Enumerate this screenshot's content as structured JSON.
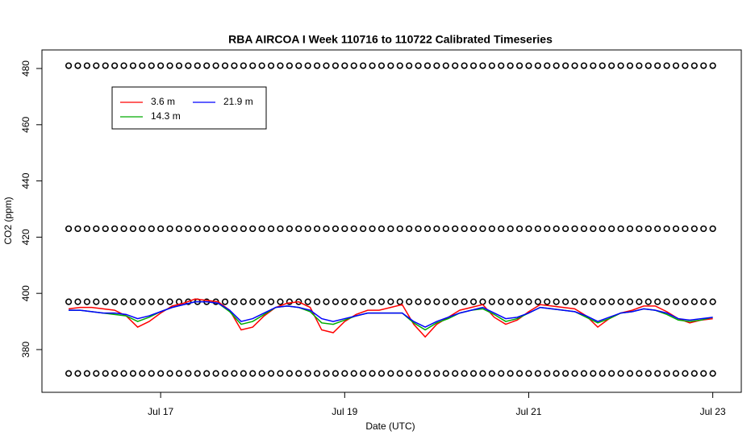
{
  "chart_data": {
    "type": "line",
    "title": "RBA AIRCOA I  Week 110716 to 110722  Calibrated Timeseries",
    "x_label": "Date (UTC)",
    "y_label": "CO2 (ppm)",
    "xlim": [
      15.71,
      23.31
    ],
    "ylim": [
      364.8,
      486.6
    ],
    "xticks": [
      {
        "value": 17,
        "label": "Jul 17"
      },
      {
        "value": 19,
        "label": "Jul 19"
      },
      {
        "value": 21,
        "label": "Jul 21"
      },
      {
        "value": 23,
        "label": "Jul 23"
      }
    ],
    "yticks": [
      380,
      400,
      420,
      440,
      460,
      480
    ],
    "legend": "top-left",
    "x": [
      16.0,
      16.125,
      16.25,
      16.375,
      16.5,
      16.625,
      16.75,
      16.875,
      17.0,
      17.125,
      17.25,
      17.375,
      17.5,
      17.625,
      17.75,
      17.875,
      18.0,
      18.125,
      18.25,
      18.375,
      18.5,
      18.625,
      18.75,
      18.875,
      19.0,
      19.125,
      19.25,
      19.375,
      19.5,
      19.625,
      19.75,
      19.875,
      20.0,
      20.125,
      20.25,
      20.375,
      20.5,
      20.625,
      20.75,
      20.875,
      21.0,
      21.125,
      21.25,
      21.375,
      21.5,
      21.625,
      21.75,
      21.875,
      22.0,
      22.125,
      22.25,
      22.375,
      22.5,
      22.625,
      22.75,
      22.875,
      23.0
    ],
    "series": [
      {
        "name": "3.6 m",
        "color": "#ff0000",
        "values": [
          394.5,
          395,
          395,
          394.5,
          394,
          392,
          388,
          390,
          393,
          395.5,
          396.5,
          398,
          397.5,
          397,
          394,
          387,
          388,
          392,
          395,
          396.5,
          397,
          395,
          387,
          386,
          390,
          392.5,
          394,
          394,
          395,
          396,
          389,
          384.5,
          389,
          391.5,
          394,
          395,
          396,
          391.5,
          389,
          390.5,
          393.5,
          396,
          395.5,
          395,
          394.5,
          392,
          388,
          391,
          393,
          394,
          395.5,
          395.5,
          393.5,
          391,
          389.5,
          390.5,
          391
        ]
      },
      {
        "name": "14.3 m",
        "color": "#00aa00",
        "values": [
          394,
          394,
          393.5,
          393,
          392.5,
          392,
          390,
          391.5,
          393.5,
          395,
          396,
          397,
          397,
          396.5,
          393.5,
          389,
          390,
          392.5,
          395,
          395.5,
          395,
          393.5,
          389.5,
          389,
          390.5,
          392,
          393,
          393,
          393,
          393,
          389.5,
          387,
          389.5,
          391,
          393,
          394,
          394.5,
          392.5,
          390,
          391,
          393,
          395,
          394.5,
          394,
          393.5,
          391.5,
          389.5,
          391,
          393,
          393.5,
          394.5,
          394,
          392.5,
          390.5,
          390,
          390.5,
          391.5
        ]
      },
      {
        "name": "21.9 m",
        "color": "#0000ff",
        "values": [
          394,
          394,
          393.5,
          393,
          393,
          392.5,
          391,
          392,
          393.5,
          395,
          396,
          397,
          397,
          396.5,
          394,
          390,
          391,
          393,
          395,
          395.5,
          395,
          394,
          391,
          390,
          391,
          392,
          393,
          393,
          393,
          393,
          390,
          388,
          390,
          391.5,
          393,
          394,
          395,
          393,
          391,
          391.5,
          393,
          395,
          394.5,
          394,
          393.5,
          392,
          390,
          391.5,
          393,
          393.5,
          394.5,
          394,
          393,
          391,
          390.5,
          391,
          391.5
        ]
      }
    ],
    "calibration": {
      "levels": [
        481,
        423,
        397,
        371.5
      ],
      "x": [
        16.0,
        16.1,
        16.2,
        16.3,
        16.4,
        16.5,
        16.6,
        16.7,
        16.8,
        16.9,
        17.0,
        17.1,
        17.2,
        17.3,
        17.4,
        17.5,
        17.6,
        17.7,
        17.8,
        17.9,
        18.0,
        18.1,
        18.2,
        18.3,
        18.4,
        18.5,
        18.6,
        18.7,
        18.8,
        18.9,
        19.0,
        19.1,
        19.2,
        19.3,
        19.4,
        19.5,
        19.6,
        19.7,
        19.8,
        19.9,
        20.0,
        20.1,
        20.2,
        20.3,
        20.4,
        20.5,
        20.6,
        20.7,
        20.8,
        20.9,
        21.0,
        21.1,
        21.2,
        21.3,
        21.4,
        21.5,
        21.6,
        21.7,
        21.8,
        21.9,
        22.0,
        22.1,
        22.2,
        22.3,
        22.4,
        22.5,
        22.6,
        22.7,
        22.8,
        22.9,
        23.0
      ]
    }
  }
}
